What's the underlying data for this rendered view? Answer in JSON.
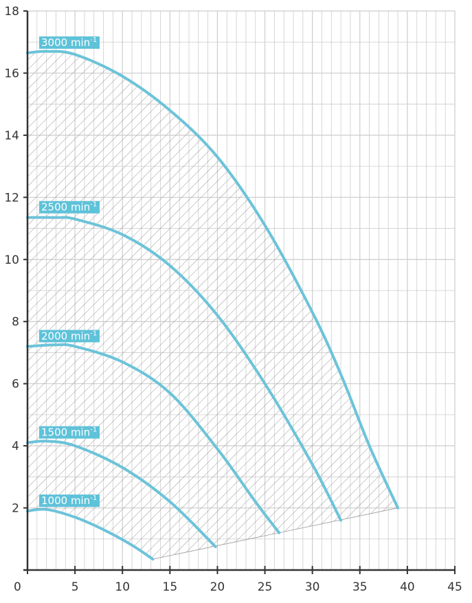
{
  "chart_data": {
    "type": "line",
    "title": "",
    "xlabel": "",
    "ylabel": "",
    "xlim": [
      0,
      45
    ],
    "ylim": [
      0,
      18
    ],
    "x_ticks": [
      0,
      5,
      10,
      15,
      20,
      25,
      30,
      35,
      40,
      45
    ],
    "y_ticks": [
      2,
      4,
      6,
      8,
      10,
      12,
      14,
      16,
      18
    ],
    "x_minor_step": 1,
    "y_minor_step": 1,
    "grid": true,
    "legend": "none",
    "curve_color": "#6cc3d9",
    "label_bg_color": "#5ec2d9",
    "grid_color": "#cccccc",
    "axis_color": "#333333",
    "hatch_color": "#999999",
    "operating_area": "hatched",
    "series": [
      {
        "label_base": "3000 min",
        "label_exp": "-1",
        "x": [
          0,
          2,
          5,
          10,
          15,
          20,
          25,
          30,
          33,
          36,
          39
        ],
        "y": [
          16.65,
          16.7,
          16.6,
          15.9,
          14.8,
          13.3,
          11.1,
          8.3,
          6.3,
          4.0,
          2.0
        ]
      },
      {
        "label_base": "2500 min",
        "label_exp": "-1",
        "x": [
          0,
          3,
          5,
          10,
          15,
          20,
          25,
          30,
          33
        ],
        "y": [
          11.35,
          11.35,
          11.3,
          10.8,
          9.8,
          8.2,
          6.0,
          3.4,
          1.6
        ]
      },
      {
        "label_base": "2000 min",
        "label_exp": "-1",
        "x": [
          0,
          3,
          5,
          10,
          15,
          20,
          24,
          26.5
        ],
        "y": [
          7.2,
          7.25,
          7.2,
          6.7,
          5.7,
          3.9,
          2.2,
          1.2
        ]
      },
      {
        "label_base": "1500 min",
        "label_exp": "-1",
        "x": [
          0,
          2,
          5,
          10,
          15,
          19.8
        ],
        "y": [
          4.1,
          4.15,
          4.0,
          3.3,
          2.2,
          0.75
        ]
      },
      {
        "label_base": "1000 min",
        "label_exp": "-1",
        "x": [
          0,
          2,
          5,
          8,
          11,
          13.2
        ],
        "y": [
          1.9,
          1.95,
          1.7,
          1.3,
          0.8,
          0.35
        ]
      }
    ]
  }
}
